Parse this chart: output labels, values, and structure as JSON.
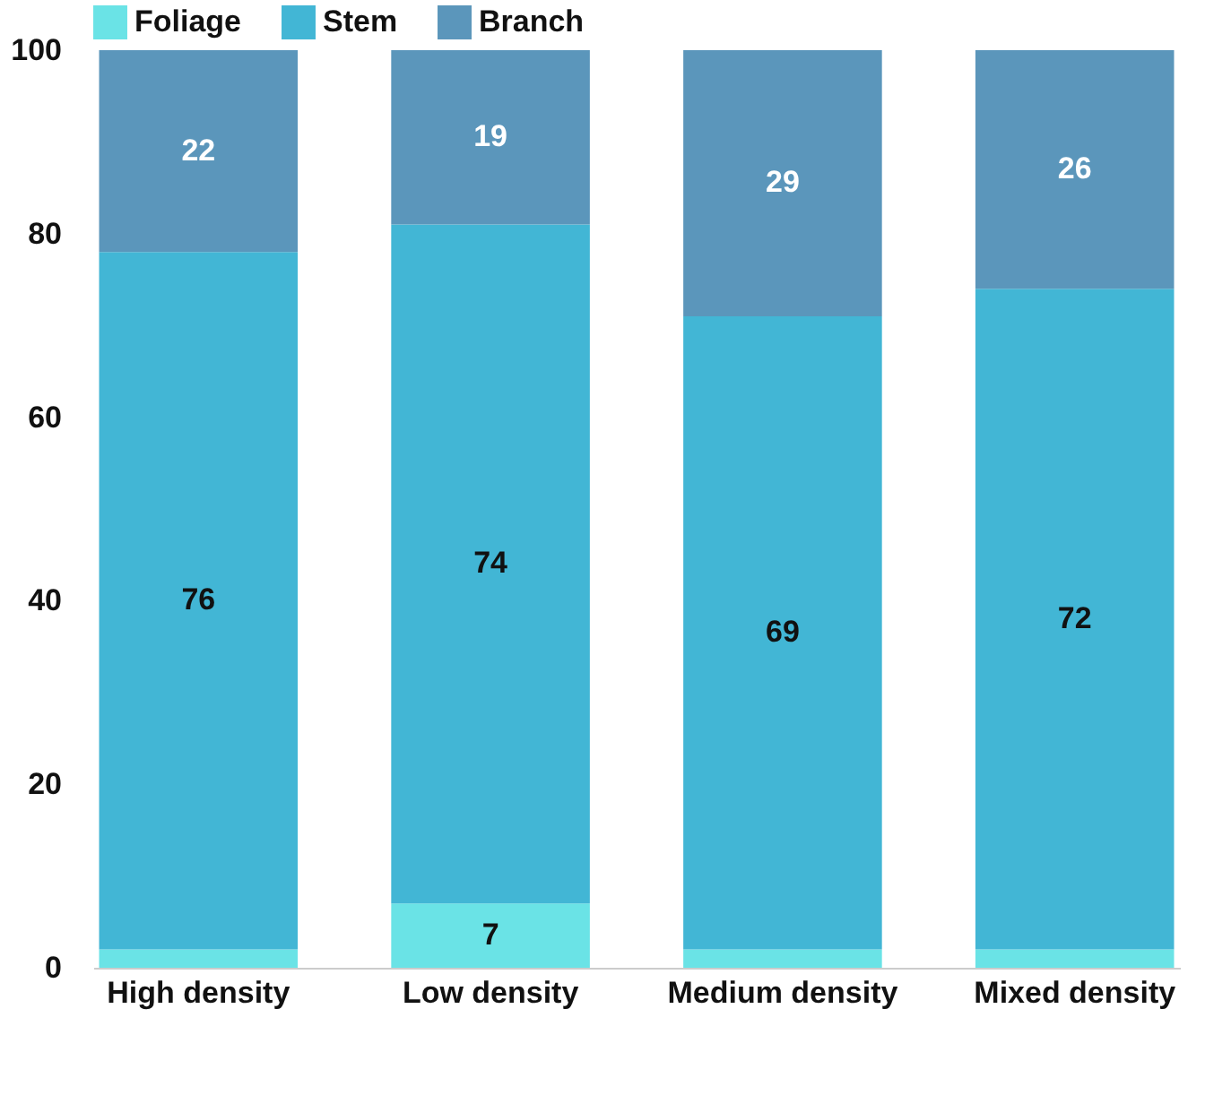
{
  "chart_data": {
    "type": "bar",
    "stacked": true,
    "categories": [
      "High density",
      "Low density",
      "Medium density",
      "Mixed density"
    ],
    "series": [
      {
        "name": "Foliage",
        "color": "#6ae3e6",
        "values": [
          2,
          7,
          2,
          2
        ],
        "value_labels": [
          null,
          "7",
          null,
          null
        ]
      },
      {
        "name": "Stem",
        "color": "#42b6d5",
        "values": [
          76,
          74,
          69,
          72
        ],
        "value_labels": [
          "76",
          "74",
          "69",
          "72"
        ]
      },
      {
        "name": "Branch",
        "color": "#5b96bb",
        "values": [
          22,
          19,
          29,
          26
        ],
        "value_labels": [
          "22",
          "19",
          "29",
          "26"
        ]
      }
    ],
    "ylim": [
      0,
      100
    ],
    "yticks": [
      0,
      20,
      40,
      60,
      80,
      100
    ],
    "grid": false,
    "legend": "top"
  }
}
